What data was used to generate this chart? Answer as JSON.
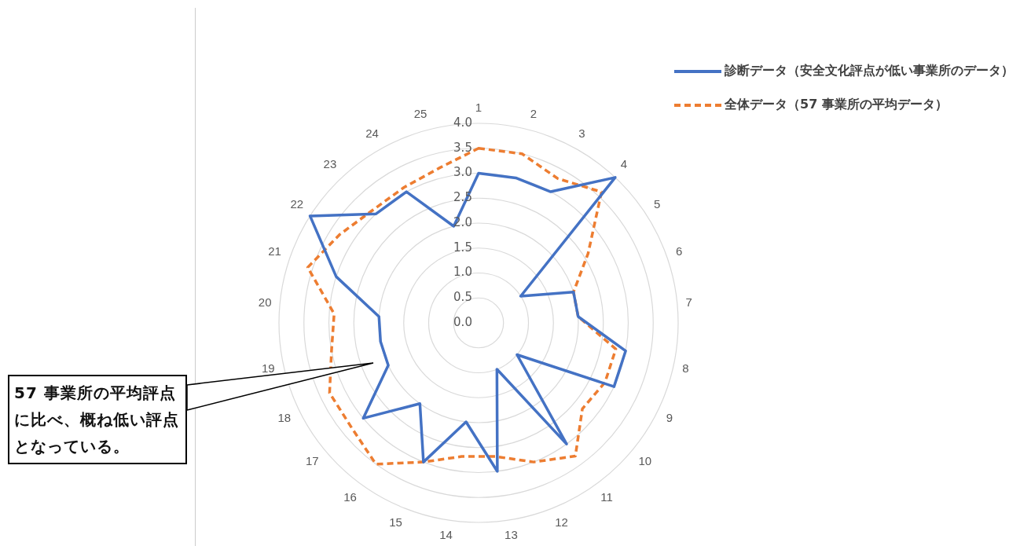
{
  "chart_data": {
    "type": "radar",
    "categories": [
      "1",
      "2",
      "3",
      "4",
      "5",
      "6",
      "7",
      "8",
      "9",
      "10",
      "11",
      "12",
      "13",
      "14",
      "15",
      "16",
      "17",
      "18",
      "19",
      "20",
      "21",
      "22",
      "23",
      "24",
      "25"
    ],
    "series": [
      {
        "name": "診断データ（安全文化評点が低い事業所のデータ）",
        "color": "#4472c4",
        "line_style": "solid",
        "values": [
          3.0,
          3.0,
          3.0,
          4.0,
          1.0,
          2.0,
          2.0,
          3.0,
          3.0,
          1.0,
          3.0,
          1.0,
          3.0,
          2.0,
          3.0,
          2.0,
          3.0,
          2.0,
          2.0,
          2.0,
          3.0,
          4.0,
          3.0,
          3.0,
          2.0
        ]
      },
      {
        "name": "全体データ（57 事業所の平均データ）",
        "color": "#ed7d31",
        "line_style": "dashed",
        "values": [
          3.5,
          3.5,
          3.3,
          3.6,
          2.6,
          2.0,
          2.0,
          2.8,
          2.8,
          2.7,
          3.3,
          3.0,
          2.7,
          2.7,
          3.0,
          3.5,
          3.3,
          3.3,
          3.0,
          2.9,
          3.6,
          3.3,
          3.1,
          3.1,
          3.2
        ]
      }
    ],
    "ylim": [
      0,
      4
    ],
    "yticks": [
      {
        "value": 0,
        "label": "0.0"
      },
      {
        "value": 0.5,
        "label": "0.5"
      },
      {
        "value": 1,
        "label": "1.0"
      },
      {
        "value": 1.5,
        "label": "1.5"
      },
      {
        "value": 2,
        "label": "2.0"
      },
      {
        "value": 2.5,
        "label": "2.5"
      },
      {
        "value": 3,
        "label": "3.0"
      },
      {
        "value": 3.5,
        "label": "3.5"
      },
      {
        "value": 4,
        "label": "4.0"
      }
    ],
    "grid": true,
    "legend": "top right",
    "marker": "none",
    "annotations": [
      "57 事業所の平均評点に比べ、概ね低い評点となっている。"
    ]
  }
}
